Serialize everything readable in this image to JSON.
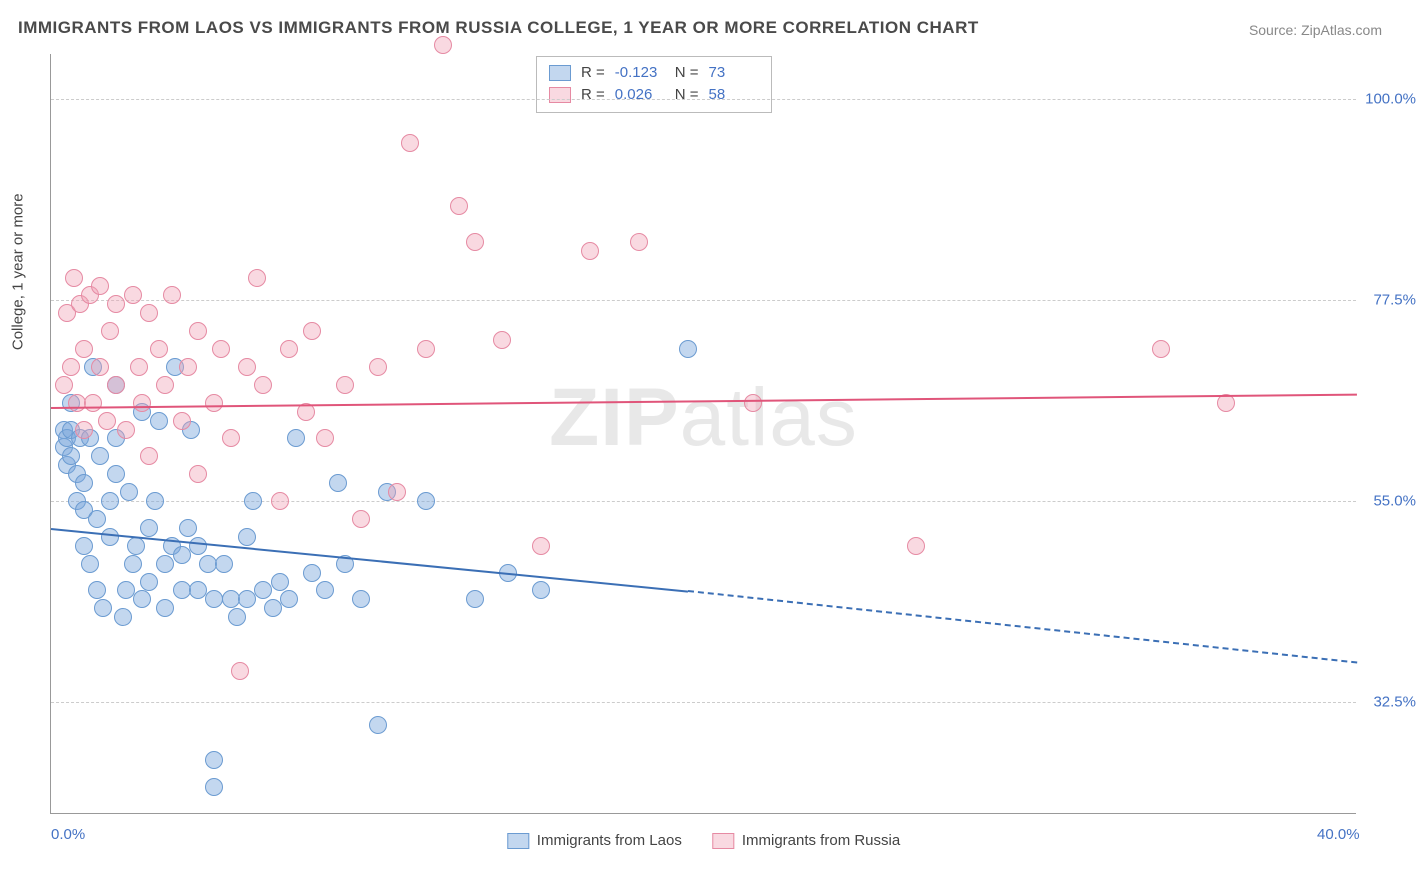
{
  "title": "IMMIGRANTS FROM LAOS VS IMMIGRANTS FROM RUSSIA COLLEGE, 1 YEAR OR MORE CORRELATION CHART",
  "source": "Source: ZipAtlas.com",
  "watermark_bold": "ZIP",
  "watermark_rest": "atlas",
  "y_axis_title": "College, 1 year or more",
  "chart": {
    "type": "scatter",
    "background": "#ffffff",
    "grid_color": "#cccccc",
    "axis_color": "#999999",
    "xlim": [
      0,
      40
    ],
    "ylim": [
      20,
      105
    ],
    "x_ticks": [
      {
        "value": 0,
        "label": "0.0%"
      },
      {
        "value": 40,
        "label": "40.0%"
      }
    ],
    "y_ticks": [
      {
        "value": 32.5,
        "label": "32.5%"
      },
      {
        "value": 55.0,
        "label": "55.0%"
      },
      {
        "value": 77.5,
        "label": "77.5%"
      },
      {
        "value": 100.0,
        "label": "100.0%"
      }
    ],
    "series": [
      {
        "name": "Immigrants from Laos",
        "fill": "rgba(123,167,220,0.45)",
        "stroke": "#6b9bd1",
        "line_color": "#3b6fb5",
        "marker_radius": 9,
        "R": "-0.123",
        "N": "73",
        "trend": {
          "x1": 0,
          "y1": 52,
          "x2": 19.5,
          "y2": 45,
          "x2_dash": 40,
          "y2_dash": 37
        },
        "points": [
          [
            0.4,
            63
          ],
          [
            0.4,
            61
          ],
          [
            0.5,
            59
          ],
          [
            0.5,
            62
          ],
          [
            0.6,
            60
          ],
          [
            0.6,
            63
          ],
          [
            0.6,
            66
          ],
          [
            0.8,
            58
          ],
          [
            0.8,
            55
          ],
          [
            0.9,
            62
          ],
          [
            1.0,
            54
          ],
          [
            1.0,
            50
          ],
          [
            1.0,
            57
          ],
          [
            1.2,
            48
          ],
          [
            1.2,
            62
          ],
          [
            1.3,
            70
          ],
          [
            1.4,
            45
          ],
          [
            1.4,
            53
          ],
          [
            1.5,
            60
          ],
          [
            1.6,
            43
          ],
          [
            1.8,
            55
          ],
          [
            1.8,
            51
          ],
          [
            2.0,
            62
          ],
          [
            2.0,
            58
          ],
          [
            2.0,
            68
          ],
          [
            2.2,
            42
          ],
          [
            2.3,
            45
          ],
          [
            2.4,
            56
          ],
          [
            2.5,
            48
          ],
          [
            2.6,
            50
          ],
          [
            2.8,
            44
          ],
          [
            2.8,
            65
          ],
          [
            3.0,
            46
          ],
          [
            3.0,
            52
          ],
          [
            3.2,
            55
          ],
          [
            3.3,
            64
          ],
          [
            3.5,
            43
          ],
          [
            3.5,
            48
          ],
          [
            3.7,
            50
          ],
          [
            3.8,
            70
          ],
          [
            4.0,
            45
          ],
          [
            4.0,
            49
          ],
          [
            4.2,
            52
          ],
          [
            4.3,
            63
          ],
          [
            4.5,
            45
          ],
          [
            4.5,
            50
          ],
          [
            4.8,
            48
          ],
          [
            5.0,
            23
          ],
          [
            5.0,
            26
          ],
          [
            5.0,
            44
          ],
          [
            5.3,
            48
          ],
          [
            5.5,
            44
          ],
          [
            5.7,
            42
          ],
          [
            6.0,
            51
          ],
          [
            6.0,
            44
          ],
          [
            6.2,
            55
          ],
          [
            6.5,
            45
          ],
          [
            6.8,
            43
          ],
          [
            7.0,
            46
          ],
          [
            7.3,
            44
          ],
          [
            7.5,
            62
          ],
          [
            8.0,
            47
          ],
          [
            8.4,
            45
          ],
          [
            8.8,
            57
          ],
          [
            9.0,
            48
          ],
          [
            9.5,
            44
          ],
          [
            10.0,
            30
          ],
          [
            10.3,
            56
          ],
          [
            11.5,
            55
          ],
          [
            13.0,
            44
          ],
          [
            14.0,
            47
          ],
          [
            15.0,
            45
          ],
          [
            19.5,
            72
          ]
        ]
      },
      {
        "name": "Immigrants from Russia",
        "fill": "rgba(240,160,180,0.4)",
        "stroke": "#e68aa3",
        "line_color": "#e0557a",
        "marker_radius": 9,
        "R": "0.026",
        "N": "58",
        "trend": {
          "x1": 0,
          "y1": 65.5,
          "x2": 40,
          "y2": 67,
          "dash": false
        },
        "points": [
          [
            0.4,
            68
          ],
          [
            0.5,
            76
          ],
          [
            0.6,
            70
          ],
          [
            0.7,
            80
          ],
          [
            0.8,
            66
          ],
          [
            0.9,
            77
          ],
          [
            1.0,
            72
          ],
          [
            1.0,
            63
          ],
          [
            1.2,
            78
          ],
          [
            1.3,
            66
          ],
          [
            1.5,
            79
          ],
          [
            1.5,
            70
          ],
          [
            1.7,
            64
          ],
          [
            1.8,
            74
          ],
          [
            2.0,
            77
          ],
          [
            2.0,
            68
          ],
          [
            2.3,
            63
          ],
          [
            2.5,
            78
          ],
          [
            2.7,
            70
          ],
          [
            2.8,
            66
          ],
          [
            3.0,
            76
          ],
          [
            3.0,
            60
          ],
          [
            3.3,
            72
          ],
          [
            3.5,
            68
          ],
          [
            3.7,
            78
          ],
          [
            4.0,
            64
          ],
          [
            4.2,
            70
          ],
          [
            4.5,
            74
          ],
          [
            4.5,
            58
          ],
          [
            5.0,
            66
          ],
          [
            5.2,
            72
          ],
          [
            5.5,
            62
          ],
          [
            5.8,
            36
          ],
          [
            6.0,
            70
          ],
          [
            6.3,
            80
          ],
          [
            6.5,
            68
          ],
          [
            7.0,
            55
          ],
          [
            7.3,
            72
          ],
          [
            7.8,
            65
          ],
          [
            8.0,
            74
          ],
          [
            8.4,
            62
          ],
          [
            9.0,
            68
          ],
          [
            9.5,
            53
          ],
          [
            10.0,
            70
          ],
          [
            10.6,
            56
          ],
          [
            11.0,
            95
          ],
          [
            11.5,
            72
          ],
          [
            12.0,
            106
          ],
          [
            12.5,
            88
          ],
          [
            13.0,
            84
          ],
          [
            13.8,
            73
          ],
          [
            15.0,
            50
          ],
          [
            16.5,
            83
          ],
          [
            18.0,
            84
          ],
          [
            21.5,
            66
          ],
          [
            26.5,
            50
          ],
          [
            34.0,
            72
          ],
          [
            36.0,
            66
          ]
        ]
      }
    ]
  },
  "legend_bottom": [
    {
      "label": "Immigrants from Laos",
      "fill": "rgba(123,167,220,0.45)",
      "stroke": "#6b9bd1"
    },
    {
      "label": "Immigrants from Russia",
      "fill": "rgba(240,160,180,0.4)",
      "stroke": "#e68aa3"
    }
  ]
}
